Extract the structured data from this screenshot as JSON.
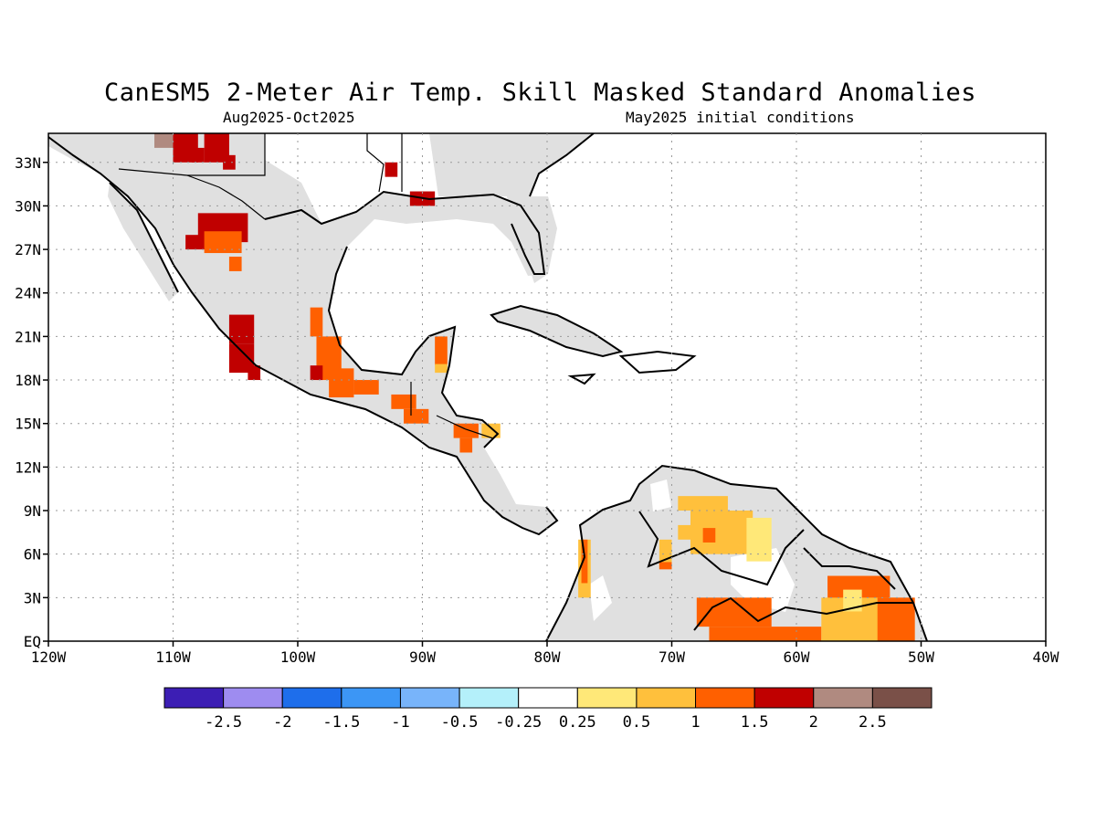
{
  "title": "CanESM5 2-Meter Air Temp. Skill Masked Standard Anomalies",
  "subtitle_left": "Aug2025-Oct2025",
  "subtitle_right": "May2025 initial conditions",
  "map": {
    "lon_range": [
      -120,
      -40
    ],
    "lat_range": [
      0,
      35
    ],
    "lon_ticks": [
      {
        "value": -120,
        "label": "120W"
      },
      {
        "value": -110,
        "label": "110W"
      },
      {
        "value": -100,
        "label": "100W"
      },
      {
        "value": -90,
        "label": "90W"
      },
      {
        "value": -80,
        "label": "80W"
      },
      {
        "value": -70,
        "label": "70W"
      },
      {
        "value": -60,
        "label": "60W"
      },
      {
        "value": -50,
        "label": "50W"
      },
      {
        "value": -40,
        "label": "40W"
      }
    ],
    "lat_ticks": [
      {
        "value": 0,
        "label": "EQ"
      },
      {
        "value": 3,
        "label": "3N"
      },
      {
        "value": 6,
        "label": "6N"
      },
      {
        "value": 9,
        "label": "9N"
      },
      {
        "value": 12,
        "label": "12N"
      },
      {
        "value": 15,
        "label": "15N"
      },
      {
        "value": 18,
        "label": "18N"
      },
      {
        "value": 21,
        "label": "21N"
      },
      {
        "value": 24,
        "label": "24N"
      },
      {
        "value": 27,
        "label": "27N"
      },
      {
        "value": 30,
        "label": "30N"
      },
      {
        "value": 33,
        "label": "33N"
      }
    ],
    "grid": true,
    "mask_color": "#e0e0e0"
  },
  "colorbar": {
    "colors": [
      "#3c1eb4",
      "#9e8cf0",
      "#1e6eeb",
      "#3c96f5",
      "#78b4fa",
      "#b4f0fa",
      "#ffffff",
      "#ffe878",
      "#ffc03c",
      "#ff6000",
      "#c00000",
      "#b08a80",
      "#7a5048"
    ],
    "labels": [
      "-2.5",
      "-2",
      "-1.5",
      "-1",
      "-0.5",
      "-0.25",
      "0.25",
      "0.5",
      "1",
      "1.5",
      "2",
      "2.5"
    ]
  },
  "anomaly_cells": [
    {
      "lon": -110.5,
      "lat": 34.5,
      "w": 2,
      "h": 1,
      "color": "#b08a80"
    },
    {
      "lon": -109,
      "lat": 34,
      "w": 2,
      "h": 2,
      "color": "#c00000"
    },
    {
      "lon": -106.5,
      "lat": 34,
      "w": 2,
      "h": 2,
      "color": "#c00000"
    },
    {
      "lon": -108,
      "lat": 33.5,
      "w": 1,
      "h": 1,
      "color": "#c00000"
    },
    {
      "lon": -105.5,
      "lat": 33,
      "w": 1,
      "h": 1,
      "color": "#c00000"
    },
    {
      "lon": -106,
      "lat": 28.5,
      "w": 4,
      "h": 2,
      "color": "#c00000"
    },
    {
      "lon": -108,
      "lat": 27.5,
      "w": 2,
      "h": 1,
      "color": "#c00000"
    },
    {
      "lon": -106,
      "lat": 27.5,
      "w": 3,
      "h": 1.5,
      "color": "#ff6000"
    },
    {
      "lon": -105,
      "lat": 26,
      "w": 1,
      "h": 1,
      "color": "#ff6000"
    },
    {
      "lon": -104.5,
      "lat": 21.5,
      "w": 2,
      "h": 2,
      "color": "#c00000"
    },
    {
      "lon": -104.5,
      "lat": 19.5,
      "w": 2,
      "h": 2,
      "color": "#c00000"
    },
    {
      "lon": -103.5,
      "lat": 18.5,
      "w": 1,
      "h": 1,
      "color": "#c00000"
    },
    {
      "lon": -98.5,
      "lat": 22,
      "w": 1,
      "h": 2,
      "color": "#ff6000"
    },
    {
      "lon": -97.5,
      "lat": 19.5,
      "w": 2,
      "h": 3,
      "color": "#ff6000"
    },
    {
      "lon": -98.5,
      "lat": 18.5,
      "w": 1,
      "h": 1,
      "color": "#c00000"
    },
    {
      "lon": -96.5,
      "lat": 17.8,
      "w": 2,
      "h": 2,
      "color": "#ff6000"
    },
    {
      "lon": -94.5,
      "lat": 17.5,
      "w": 2,
      "h": 1,
      "color": "#ff6000"
    },
    {
      "lon": -91.5,
      "lat": 16.5,
      "w": 2,
      "h": 1,
      "color": "#ff6000"
    },
    {
      "lon": -90.5,
      "lat": 15.5,
      "w": 2,
      "h": 1,
      "color": "#ff6000"
    },
    {
      "lon": -88.5,
      "lat": 20,
      "w": 1,
      "h": 2,
      "color": "#ff6000"
    },
    {
      "lon": -88.5,
      "lat": 18.8,
      "w": 1,
      "h": 0.6,
      "color": "#ffc03c"
    },
    {
      "lon": -86.5,
      "lat": 14.5,
      "w": 2,
      "h": 1,
      "color": "#ff6000"
    },
    {
      "lon": -84.5,
      "lat": 14.5,
      "w": 1.5,
      "h": 1,
      "color": "#ffc03c"
    },
    {
      "lon": -86.5,
      "lat": 13.5,
      "w": 1,
      "h": 1,
      "color": "#ff6000"
    },
    {
      "lon": -92.5,
      "lat": 32.5,
      "w": 1,
      "h": 1,
      "color": "#c00000"
    },
    {
      "lon": -90,
      "lat": 30.5,
      "w": 2,
      "h": 1,
      "color": "#c00000"
    },
    {
      "lon": -67.5,
      "lat": 9.5,
      "w": 4,
      "h": 1,
      "color": "#ffc03c"
    },
    {
      "lon": -66,
      "lat": 7.5,
      "w": 5,
      "h": 3,
      "color": "#ffc03c"
    },
    {
      "lon": -68.5,
      "lat": 7.5,
      "w": 2,
      "h": 1,
      "color": "#ffc03c"
    },
    {
      "lon": -63,
      "lat": 7,
      "w": 2,
      "h": 3,
      "color": "#ffe878"
    },
    {
      "lon": -67,
      "lat": 7.3,
      "w": 1,
      "h": 1,
      "color": "#ff6000"
    },
    {
      "lon": -77,
      "lat": 5,
      "w": 1,
      "h": 4,
      "color": "#ffc03c"
    },
    {
      "lon": -77,
      "lat": 5.5,
      "w": 0.5,
      "h": 3,
      "color": "#ff6000"
    },
    {
      "lon": -70.5,
      "lat": 6,
      "w": 1,
      "h": 2,
      "color": "#ffc03c"
    },
    {
      "lon": -70.5,
      "lat": 5.2,
      "w": 1,
      "h": 0.5,
      "color": "#ff6000"
    },
    {
      "lon": -65,
      "lat": 2,
      "w": 6,
      "h": 2,
      "color": "#ff6000"
    },
    {
      "lon": -62.5,
      "lat": 0.5,
      "w": 9,
      "h": 1,
      "color": "#ff6000"
    },
    {
      "lon": -57,
      "lat": 4,
      "w": 1,
      "h": 1,
      "color": "#ff6000"
    },
    {
      "lon": -55,
      "lat": 3.5,
      "w": 5,
      "h": 2,
      "color": "#ff6000"
    },
    {
      "lon": -55,
      "lat": 1.5,
      "w": 6,
      "h": 3,
      "color": "#ffc03c"
    },
    {
      "lon": -52,
      "lat": 1.5,
      "w": 3,
      "h": 3,
      "color": "#ff6000"
    },
    {
      "lon": -55.5,
      "lat": 2.8,
      "w": 1.5,
      "h": 1.5,
      "color": "#ffe878"
    }
  ]
}
